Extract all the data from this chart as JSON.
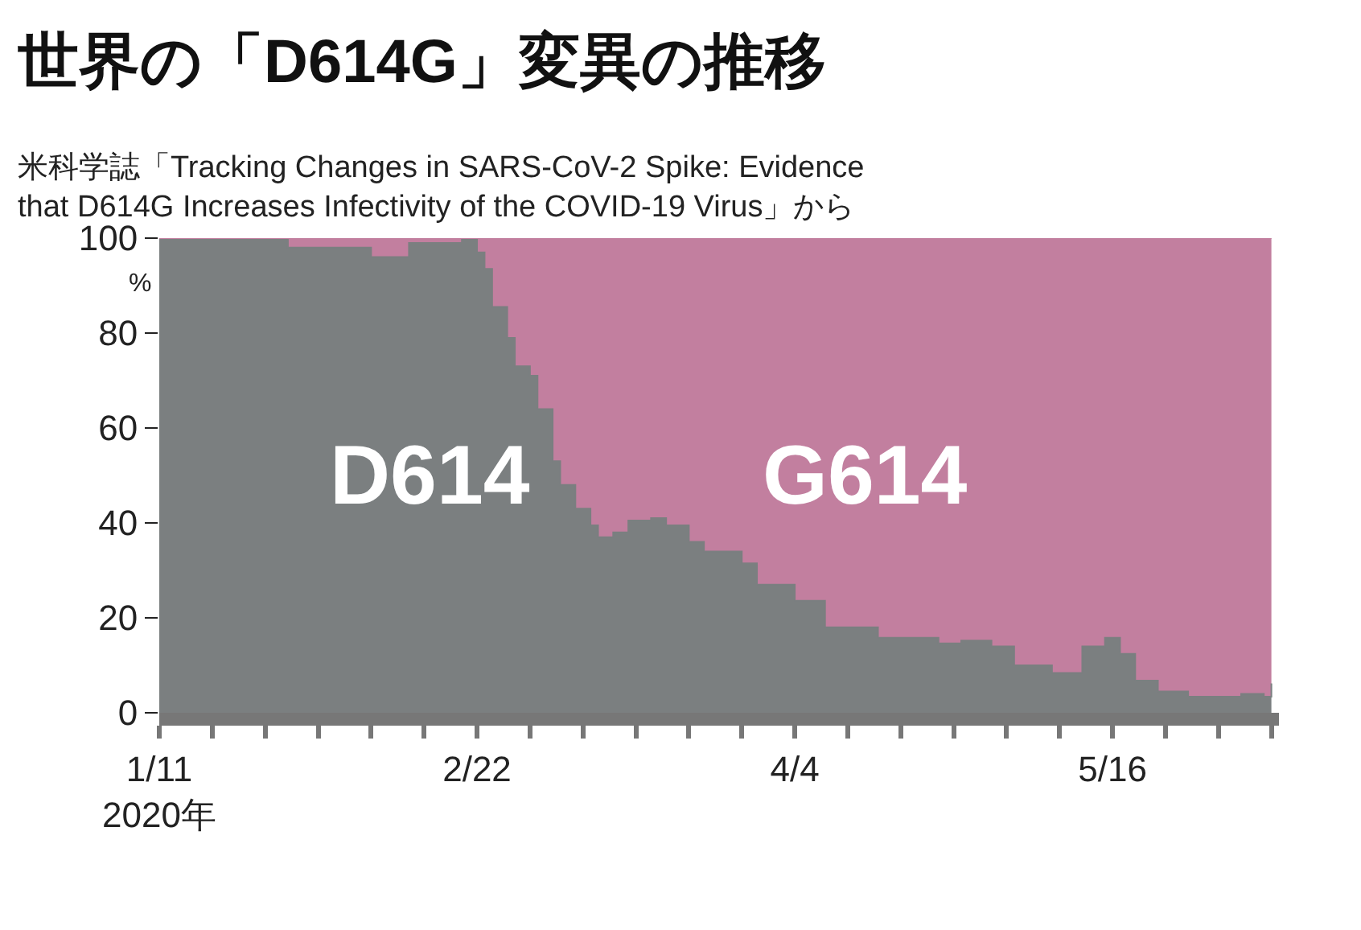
{
  "chart_data": {
    "type": "area",
    "stacked": true,
    "title": "世界の「D614G」変異の推移",
    "subtitle": "米科学誌「Tracking Changes in SARS-CoV-2 Spike: Evidence\nthat D614G Increases Infectivity of the COVID-19 Virus」から",
    "ylabel": "%",
    "x": [
      "2020-01-11",
      "2020-01-27",
      "2020-01-28",
      "2020-01-30",
      "2020-02-08",
      "2020-02-09",
      "2020-02-13",
      "2020-02-20",
      "2020-02-22",
      "2020-02-23",
      "2020-02-24",
      "2020-02-26",
      "2020-02-27",
      "2020-02-29",
      "2020-03-01",
      "2020-03-03",
      "2020-03-04",
      "2020-03-06",
      "2020-03-08",
      "2020-03-09",
      "2020-03-11",
      "2020-03-13",
      "2020-03-16",
      "2020-03-18",
      "2020-03-21",
      "2020-03-23",
      "2020-03-28",
      "2020-03-30",
      "2020-04-04",
      "2020-04-08",
      "2020-04-15",
      "2020-04-23",
      "2020-04-26",
      "2020-04-30",
      "2020-05-03",
      "2020-05-08",
      "2020-05-12",
      "2020-05-15",
      "2020-05-17",
      "2020-05-19",
      "2020-05-22",
      "2020-05-26",
      "2020-06-02",
      "2020-06-05",
      "2020-06-06"
    ],
    "series": [
      {
        "name": "D614",
        "color": "#7b7f80",
        "values": [
          100,
          100,
          98,
          98,
          96,
          96,
          99,
          100,
          97,
          93.5,
          85.5,
          79,
          73,
          71,
          64,
          53,
          48,
          43,
          39.5,
          37,
          38,
          40.5,
          41,
          39.5,
          36,
          34,
          31.5,
          27,
          23.6,
          18,
          15.8,
          14.6,
          15.2,
          14,
          10,
          8.4,
          14,
          15.8,
          12.4,
          6.8,
          4.5,
          3.4,
          4,
          3.4,
          6.2
        ]
      },
      {
        "name": "G614",
        "color": "#c27f9f",
        "values": [
          0,
          0,
          2,
          2,
          4,
          4,
          1,
          0,
          3,
          6.5,
          14.5,
          21,
          27,
          29,
          36,
          47,
          52,
          57,
          60.5,
          63,
          62,
          59.5,
          59,
          60.5,
          64,
          66,
          68.5,
          73,
          76.4,
          82,
          84.2,
          85.4,
          84.8,
          86,
          90,
          91.6,
          86,
          84.2,
          87.6,
          93.2,
          95.5,
          96.6,
          96,
          96.6,
          93.8
        ]
      }
    ],
    "xlim": [
      "2020-01-11",
      "2020-06-07"
    ],
    "xticks": [
      {
        "value": "2020-01-11",
        "label": "1/11\n2020年"
      },
      {
        "value": "2020-01-18",
        "label": null
      },
      {
        "value": "2020-01-25",
        "label": null
      },
      {
        "value": "2020-02-01",
        "label": null
      },
      {
        "value": "2020-02-08",
        "label": null
      },
      {
        "value": "2020-02-15",
        "label": null
      },
      {
        "value": "2020-02-22",
        "label": "2/22"
      },
      {
        "value": "2020-02-29",
        "label": null
      },
      {
        "value": "2020-03-07",
        "label": null
      },
      {
        "value": "2020-03-14",
        "label": null
      },
      {
        "value": "2020-03-21",
        "label": null
      },
      {
        "value": "2020-03-28",
        "label": null
      },
      {
        "value": "2020-04-04",
        "label": "4/4"
      },
      {
        "value": "2020-04-11",
        "label": null
      },
      {
        "value": "2020-04-18",
        "label": null
      },
      {
        "value": "2020-04-25",
        "label": null
      },
      {
        "value": "2020-05-02",
        "label": null
      },
      {
        "value": "2020-05-09",
        "label": null
      },
      {
        "value": "2020-05-16",
        "label": "5/16"
      },
      {
        "value": "2020-05-23",
        "label": null
      },
      {
        "value": "2020-05-30",
        "label": null
      },
      {
        "value": "2020-06-06",
        "label": null
      }
    ],
    "ylim": [
      0,
      100
    ],
    "yticks": [
      0,
      20,
      40,
      60,
      80,
      100
    ],
    "legend": false
  }
}
